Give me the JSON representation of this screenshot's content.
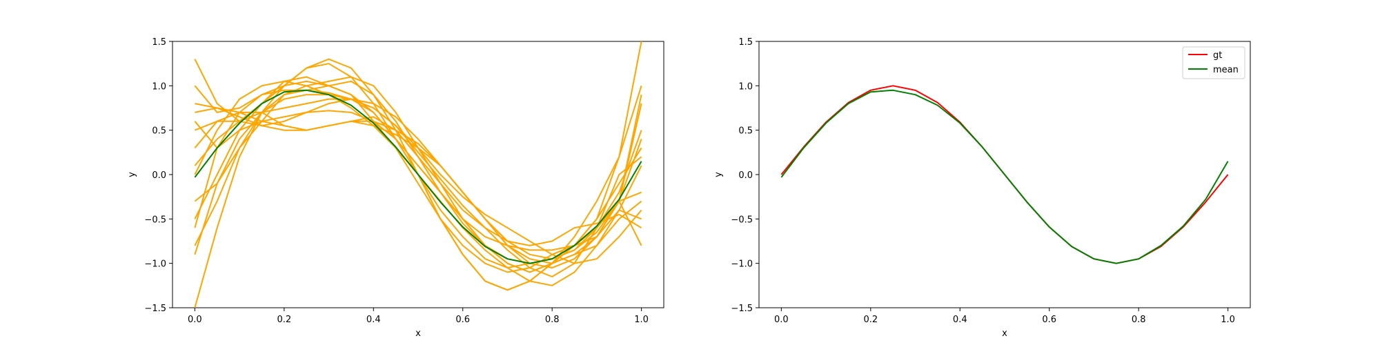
{
  "chart_data": [
    {
      "type": "line",
      "title": "",
      "xlabel": "x",
      "ylabel": "y",
      "xlim": [
        -0.05,
        1.05
      ],
      "ylim": [
        -1.5,
        1.5
      ],
      "xticks": [
        "0.0",
        "0.2",
        "0.4",
        "0.6",
        "0.8",
        "1.0"
      ],
      "yticks": [
        "−1.5",
        "−1.0",
        "−0.5",
        "0.0",
        "0.5",
        "1.0",
        "1.5"
      ],
      "grid": false,
      "legend": null,
      "x": [
        0.0,
        0.05,
        0.1,
        0.15,
        0.2,
        0.25,
        0.3,
        0.35,
        0.4,
        0.45,
        0.5,
        0.55,
        0.6,
        0.65,
        0.7,
        0.75,
        0.8,
        0.85,
        0.9,
        0.95,
        1.0
      ],
      "series": [
        {
          "color": "#ffa500",
          "values": [
            1.3,
            0.8,
            0.6,
            0.8,
            1.05,
            1.1,
            1.0,
            0.9,
            0.6,
            0.3,
            -0.1,
            -0.5,
            -0.8,
            -1.0,
            -1.1,
            -1.05,
            -0.9,
            -0.8,
            -0.6,
            -0.3,
            -0.2
          ]
        },
        {
          "color": "#ffa500",
          "values": [
            1.0,
            0.7,
            0.75,
            0.9,
            1.0,
            1.2,
            1.25,
            1.1,
            0.8,
            0.4,
            0.0,
            -0.5,
            -0.9,
            -1.2,
            -1.3,
            -1.2,
            -1.0,
            -0.8,
            -0.5,
            0.2,
            1.5
          ]
        },
        {
          "color": "#ffa500",
          "values": [
            0.6,
            0.3,
            0.5,
            0.6,
            0.65,
            0.7,
            0.72,
            0.7,
            0.6,
            0.4,
            0.1,
            -0.2,
            -0.5,
            -0.7,
            -0.8,
            -0.85,
            -0.85,
            -0.8,
            -0.7,
            -0.3,
            0.4
          ]
        },
        {
          "color": "#ffa500",
          "values": [
            0.5,
            0.6,
            0.7,
            0.7,
            0.55,
            0.5,
            0.55,
            0.6,
            0.65,
            0.5,
            0.2,
            -0.1,
            -0.4,
            -0.6,
            -0.75,
            -0.8,
            -0.75,
            -0.6,
            -0.55,
            -0.45,
            -0.6
          ]
        },
        {
          "color": "#ffa500",
          "values": [
            -0.3,
            -0.1,
            0.3,
            0.6,
            0.9,
            1.0,
            1.05,
            1.1,
            1.0,
            0.7,
            0.3,
            -0.1,
            -0.5,
            -0.8,
            -1.0,
            -1.1,
            -1.0,
            -0.8,
            -0.5,
            -0.1,
            0.3
          ]
        },
        {
          "color": "#ffa500",
          "values": [
            -0.8,
            -0.3,
            0.3,
            0.7,
            0.9,
            0.95,
            0.92,
            0.85,
            0.7,
            0.4,
            0.0,
            -0.4,
            -0.7,
            -0.95,
            -1.05,
            -1.0,
            -0.95,
            -0.8,
            -0.6,
            -0.3,
            0.8
          ]
        },
        {
          "color": "#ffa500",
          "values": [
            -1.5,
            -0.6,
            0.2,
            0.7,
            1.0,
            1.2,
            1.3,
            1.2,
            0.9,
            0.5,
            0.0,
            -0.5,
            -0.9,
            -1.2,
            -1.3,
            -1.2,
            -1.0,
            -0.7,
            -0.3,
            0.2,
            1.0
          ]
        },
        {
          "color": "#ffa500",
          "values": [
            0.1,
            0.4,
            0.6,
            0.7,
            0.75,
            0.8,
            0.85,
            0.85,
            0.75,
            0.55,
            0.3,
            0.0,
            -0.25,
            -0.45,
            -0.6,
            -0.75,
            -0.9,
            -1.0,
            -0.95,
            -0.7,
            -0.4
          ]
        },
        {
          "color": "#ffa500",
          "values": [
            -0.5,
            0.0,
            0.5,
            0.8,
            1.0,
            1.05,
            1.0,
            0.9,
            0.7,
            0.4,
            0.1,
            -0.2,
            -0.5,
            -0.8,
            -1.0,
            -1.1,
            -1.0,
            -0.9,
            -0.7,
            -0.4,
            -0.5
          ]
        },
        {
          "color": "#ffa500",
          "values": [
            0.7,
            0.75,
            0.7,
            0.6,
            0.55,
            0.5,
            0.55,
            0.6,
            0.55,
            0.45,
            0.3,
            0.1,
            -0.2,
            -0.5,
            -0.8,
            -0.95,
            -1.0,
            -0.9,
            -0.8,
            -0.5,
            -0.3
          ]
        },
        {
          "color": "#ffa500",
          "values": [
            0.0,
            0.5,
            0.85,
            1.0,
            1.05,
            1.0,
            0.9,
            0.75,
            0.55,
            0.3,
            0.0,
            -0.3,
            -0.6,
            -0.85,
            -1.05,
            -1.2,
            -1.25,
            -1.1,
            -0.8,
            -0.4,
            0.1
          ]
        },
        {
          "color": "#ffa500",
          "values": [
            0.3,
            0.6,
            0.6,
            0.55,
            0.6,
            0.7,
            0.8,
            0.85,
            0.8,
            0.65,
            0.4,
            0.1,
            -0.2,
            -0.5,
            -0.8,
            -1.0,
            -1.05,
            -0.95,
            -0.7,
            -0.3,
            0.9
          ]
        },
        {
          "color": "#ffa500",
          "values": [
            -0.9,
            -0.1,
            0.4,
            0.7,
            0.85,
            0.9,
            0.9,
            0.85,
            0.75,
            0.55,
            0.25,
            -0.05,
            -0.35,
            -0.6,
            -0.85,
            -1.05,
            -1.15,
            -1.0,
            -0.6,
            0.0,
            0.2
          ]
        },
        {
          "color": "#ffa500",
          "values": [
            0.8,
            0.75,
            0.65,
            0.55,
            0.5,
            0.5,
            0.55,
            0.6,
            0.6,
            0.5,
            0.35,
            0.1,
            -0.2,
            -0.5,
            -0.75,
            -0.9,
            -0.95,
            -0.85,
            -0.6,
            -0.2,
            0.5
          ]
        },
        {
          "color": "#ffa500",
          "values": [
            -0.6,
            0.3,
            0.7,
            0.9,
            0.95,
            0.95,
            1.0,
            1.05,
            0.9,
            0.6,
            0.2,
            -0.2,
            -0.55,
            -0.8,
            -0.95,
            -1.0,
            -0.95,
            -0.85,
            -0.65,
            -0.3,
            -0.8
          ]
        },
        {
          "color": "#008000",
          "values": [
            -0.03,
            0.3,
            0.58,
            0.8,
            0.93,
            0.95,
            0.9,
            0.78,
            0.58,
            0.31,
            0.0,
            -0.31,
            -0.59,
            -0.81,
            -0.95,
            -1.0,
            -0.95,
            -0.8,
            -0.58,
            -0.28,
            0.15
          ]
        }
      ]
    },
    {
      "type": "line",
      "title": "",
      "xlabel": "x",
      "ylabel": "y",
      "xlim": [
        -0.05,
        1.05
      ],
      "ylim": [
        -1.5,
        1.5
      ],
      "xticks": [
        "0.0",
        "0.2",
        "0.4",
        "0.6",
        "0.8",
        "1.0"
      ],
      "yticks": [
        "−1.5",
        "−1.0",
        "−0.5",
        "0.0",
        "0.5",
        "1.0",
        "1.5"
      ],
      "grid": false,
      "legend": "top-right",
      "x": [
        0.0,
        0.05,
        0.1,
        0.15,
        0.2,
        0.25,
        0.3,
        0.35,
        0.4,
        0.45,
        0.5,
        0.55,
        0.6,
        0.65,
        0.7,
        0.75,
        0.8,
        0.85,
        0.9,
        0.95,
        1.0
      ],
      "series": [
        {
          "name": "gt",
          "color": "#ff0000",
          "values": [
            0.0,
            0.31,
            0.59,
            0.81,
            0.95,
            1.0,
            0.95,
            0.81,
            0.59,
            0.31,
            0.0,
            -0.31,
            -0.59,
            -0.81,
            -0.95,
            -1.0,
            -0.95,
            -0.81,
            -0.59,
            -0.31,
            0.0
          ]
        },
        {
          "name": "mean",
          "color": "#008000",
          "values": [
            -0.03,
            0.3,
            0.58,
            0.8,
            0.93,
            0.95,
            0.9,
            0.78,
            0.58,
            0.31,
            0.0,
            -0.31,
            -0.59,
            -0.81,
            -0.95,
            -1.0,
            -0.95,
            -0.8,
            -0.58,
            -0.28,
            0.15
          ]
        }
      ]
    }
  ]
}
